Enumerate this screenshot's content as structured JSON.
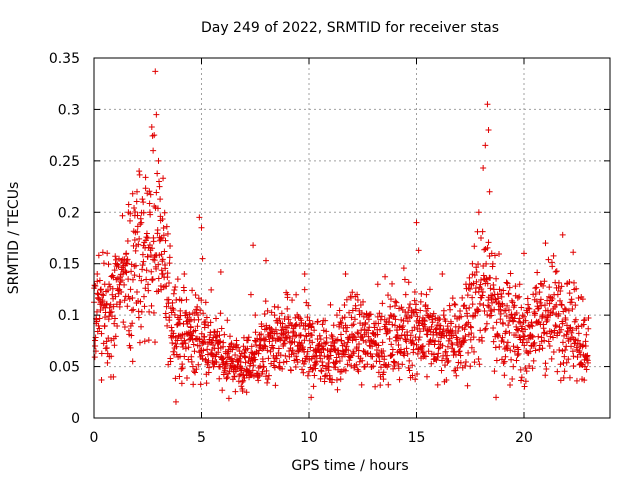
{
  "chart_data": {
    "type": "scatter",
    "title": "Day 249 of 2022, SRMTID for receiver stas",
    "xlabel": "GPS time / hours",
    "ylabel": "SRMTID / TECUs",
    "xlim": [
      0,
      24
    ],
    "ylim": [
      0,
      0.35
    ],
    "xticks": [
      0,
      5,
      10,
      15,
      20
    ],
    "xtick_labels": [
      "0",
      "5",
      "10",
      "15",
      "20"
    ],
    "yticks": [
      0,
      0.05,
      0.1,
      0.15,
      0.2,
      0.25,
      0.3,
      0.35
    ],
    "ytick_labels": [
      "0",
      "0.05",
      "0.1",
      "0.15",
      "0.2",
      "0.25",
      "0.3",
      "0.35"
    ],
    "grid": true,
    "marker": "+",
    "color": "#e00000",
    "series": [
      {
        "name": "SRMTID",
        "approx_profile_hours": [
          0,
          1,
          2,
          2.5,
          3,
          3.5,
          4,
          5,
          6,
          7,
          8,
          9,
          10,
          11,
          12,
          13,
          14,
          15,
          16,
          17,
          17.5,
          18,
          18.5,
          19,
          20,
          21,
          22,
          23
        ],
        "approx_profile_values": [
          0.1,
          0.11,
          0.15,
          0.16,
          0.17,
          0.11,
          0.08,
          0.08,
          0.06,
          0.05,
          0.07,
          0.075,
          0.07,
          0.06,
          0.08,
          0.075,
          0.08,
          0.09,
          0.075,
          0.075,
          0.1,
          0.12,
          0.13,
          0.09,
          0.08,
          0.1,
          0.1,
          0.07
        ],
        "points": [
          [
            0.05,
            0.07
          ],
          [
            0.1,
            0.092
          ],
          [
            0.15,
            0.14
          ],
          [
            0.2,
            0.12
          ],
          [
            0.3,
            0.105
          ],
          [
            0.35,
            0.082
          ],
          [
            0.5,
            0.13
          ],
          [
            0.6,
            0.068
          ],
          [
            0.7,
            0.099
          ],
          [
            0.8,
            0.06
          ],
          [
            0.9,
            0.04
          ],
          [
            1.0,
            0.118
          ],
          [
            1.2,
            0.108
          ],
          [
            1.35,
            0.14
          ],
          [
            1.5,
            0.16
          ],
          [
            1.6,
            0.2
          ],
          [
            1.7,
            0.125
          ],
          [
            1.8,
            0.055
          ],
          [
            1.9,
            0.173
          ],
          [
            2.0,
            0.22
          ],
          [
            2.1,
            0.24
          ],
          [
            2.2,
            0.19
          ],
          [
            2.3,
            0.152
          ],
          [
            2.4,
            0.234
          ],
          [
            2.5,
            0.175
          ],
          [
            2.6,
            0.2
          ],
          [
            2.7,
            0.165
          ],
          [
            2.75,
            0.26
          ],
          [
            2.8,
            0.275
          ],
          [
            2.85,
            0.337
          ],
          [
            2.9,
            0.295
          ],
          [
            3.0,
            0.25
          ],
          [
            3.05,
            0.225
          ],
          [
            3.1,
            0.192
          ],
          [
            3.15,
            0.175
          ],
          [
            3.2,
            0.14
          ],
          [
            3.3,
            0.128
          ],
          [
            3.4,
            0.115
          ],
          [
            3.5,
            0.098
          ],
          [
            3.6,
            0.088
          ],
          [
            3.7,
            0.105
          ],
          [
            3.8,
            0.078
          ],
          [
            3.9,
            0.135
          ],
          [
            4.0,
            0.092
          ],
          [
            4.1,
            0.072
          ],
          [
            4.2,
            0.14
          ],
          [
            4.3,
            0.115
          ],
          [
            4.5,
            0.088
          ],
          [
            4.6,
            0.05
          ],
          [
            4.8,
            0.108
          ],
          [
            4.9,
            0.195
          ],
          [
            5.0,
            0.185
          ],
          [
            5.05,
            0.155
          ],
          [
            5.15,
            0.088
          ],
          [
            5.3,
            0.072
          ],
          [
            5.5,
            0.075
          ],
          [
            5.7,
            0.062
          ],
          [
            5.9,
            0.142
          ],
          [
            6.0,
            0.058
          ],
          [
            6.2,
            0.095
          ],
          [
            6.4,
            0.055
          ],
          [
            6.5,
            0.045
          ],
          [
            6.6,
            0.07
          ],
          [
            6.8,
            0.05
          ],
          [
            6.9,
            0.035
          ],
          [
            7.0,
            0.06
          ],
          [
            7.1,
            0.025
          ],
          [
            7.2,
            0.045
          ],
          [
            7.3,
            0.12
          ],
          [
            7.4,
            0.168
          ],
          [
            7.5,
            0.1
          ],
          [
            7.7,
            0.07
          ],
          [
            7.9,
            0.05
          ],
          [
            8.0,
            0.153
          ],
          [
            8.2,
            0.08
          ],
          [
            8.4,
            0.1
          ],
          [
            8.6,
            0.05
          ],
          [
            8.8,
            0.07
          ],
          [
            9.0,
            0.12
          ],
          [
            9.2,
            0.09
          ],
          [
            9.4,
            0.06
          ],
          [
            9.6,
            0.08
          ],
          [
            9.8,
            0.14
          ],
          [
            10.0,
            0.045
          ],
          [
            10.1,
            0.02
          ],
          [
            10.3,
            0.065
          ],
          [
            10.5,
            0.08
          ],
          [
            10.8,
            0.05
          ],
          [
            11.0,
            0.11
          ],
          [
            11.3,
            0.1
          ],
          [
            11.5,
            0.075
          ],
          [
            11.7,
            0.14
          ],
          [
            12.0,
            0.09
          ],
          [
            12.3,
            0.06
          ],
          [
            12.6,
            0.05
          ],
          [
            12.9,
            0.075
          ],
          [
            13.2,
            0.13
          ],
          [
            13.5,
            0.06
          ],
          [
            13.8,
            0.1
          ],
          [
            14.0,
            0.09
          ],
          [
            14.2,
            0.065
          ],
          [
            14.5,
            0.12
          ],
          [
            14.8,
            0.085
          ],
          [
            15.0,
            0.19
          ],
          [
            15.1,
            0.163
          ],
          [
            15.3,
            0.07
          ],
          [
            15.5,
            0.1
          ],
          [
            15.8,
            0.057
          ],
          [
            16.0,
            0.095
          ],
          [
            16.2,
            0.14
          ],
          [
            16.5,
            0.075
          ],
          [
            16.8,
            0.11
          ],
          [
            17.0,
            0.065
          ],
          [
            17.3,
            0.13
          ],
          [
            17.6,
            0.15
          ],
          [
            17.9,
            0.2
          ],
          [
            18.0,
            0.175
          ],
          [
            18.1,
            0.243
          ],
          [
            18.2,
            0.265
          ],
          [
            18.3,
            0.305
          ],
          [
            18.35,
            0.28
          ],
          [
            18.4,
            0.22
          ],
          [
            18.5,
            0.16
          ],
          [
            18.6,
            0.125
          ],
          [
            18.7,
            0.02
          ],
          [
            18.8,
            0.08
          ],
          [
            19.0,
            0.11
          ],
          [
            19.2,
            0.07
          ],
          [
            19.5,
            0.05
          ],
          [
            19.8,
            0.13
          ],
          [
            20.0,
            0.16
          ],
          [
            20.2,
            0.09
          ],
          [
            20.5,
            0.1
          ],
          [
            20.8,
            0.13
          ],
          [
            21.0,
            0.17
          ],
          [
            21.2,
            0.07
          ],
          [
            21.5,
            0.11
          ],
          [
            21.8,
            0.178
          ],
          [
            22.0,
            0.09
          ],
          [
            22.3,
            0.06
          ]
        ]
      }
    ]
  }
}
